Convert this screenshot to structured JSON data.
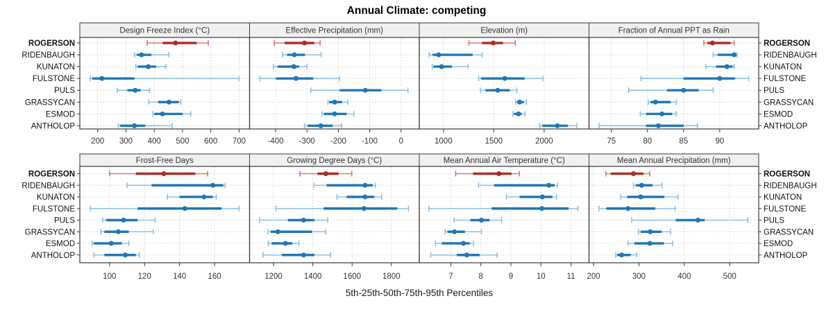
{
  "title": "Annual Climate: competing",
  "caption": "5th-25th-50th-75th-95th Percentiles",
  "colors": {
    "highlight": "#AE2C28",
    "highlight_light": "#D07A75",
    "normal": "#2076B4",
    "normal_light": "#8FC0E1",
    "strip_bg": "#F0F0F0",
    "border": "#3A3A3A",
    "grid": "#BDBDBD",
    "tick_label": "#333333",
    "site_label": "#111111"
  },
  "chart_data": {
    "type": "dotplot-percentiles",
    "percentile_levels": [
      5,
      25,
      50,
      75,
      95
    ],
    "sites": [
      "ROGERSON",
      "RIDENBAUGH",
      "KUNATON",
      "FULSTONE",
      "PULS",
      "GRASSYCAN",
      "ESMOD",
      "ANTHOLOP"
    ],
    "highlight_site": "ROGERSON",
    "panels": [
      {
        "title": "Design Freeze Index (°C)",
        "row": 0,
        "col": 0,
        "xlim": [
          137,
          737
        ],
        "ticks": [
          200,
          300,
          400,
          500,
          600,
          700
        ],
        "series": [
          {
            "site": "ROGERSON",
            "p": [
              375,
              430,
              475,
              550,
              591
            ]
          },
          {
            "site": "RIDENBAUGH",
            "p": [
              330,
              338,
              355,
              390,
              452
            ]
          },
          {
            "site": "KUNATON",
            "p": [
              335,
              342,
              379,
              407,
              441
            ]
          },
          {
            "site": "FULSTONE",
            "p": [
              174,
              181,
              215,
              330,
              700
            ]
          },
          {
            "site": "PULS",
            "p": [
              269,
              305,
              333,
              352,
              383
            ]
          },
          {
            "site": "GRASSYCAN",
            "p": [
              381,
              414,
              452,
              487,
              494
            ]
          },
          {
            "site": "ESMOD",
            "p": [
              395,
              400,
              429,
              500,
              529
            ]
          },
          {
            "site": "ANTHOLOP",
            "p": [
              273,
              280,
              330,
              368,
              464
            ]
          }
        ]
      },
      {
        "title": "Effective Precipitation (mm)",
        "row": 0,
        "col": 1,
        "xlim": [
          -483,
          58
        ],
        "ticks": [
          -400,
          -300,
          -200,
          -100,
          0
        ],
        "series": [
          {
            "site": "ROGERSON",
            "p": [
              -404,
              -371,
              -308,
              -277,
              -258
            ]
          },
          {
            "site": "RIDENBAUGH",
            "p": [
              -378,
              -363,
              -340,
              -306,
              -255
            ]
          },
          {
            "site": "KUNATON",
            "p": [
              -407,
              -394,
              -342,
              -325,
              -300
            ]
          },
          {
            "site": "FULSTONE",
            "p": [
              -450,
              -399,
              -335,
              -280,
              -196
            ]
          },
          {
            "site": "PULS",
            "p": [
              -288,
              -196,
              -114,
              -63,
              22
            ]
          },
          {
            "site": "GRASSYCAN",
            "p": [
              -233,
              -229,
              -212,
              -188,
              -170
            ]
          },
          {
            "site": "ESMOD",
            "p": [
              -252,
              -246,
              -212,
              -174,
              -150
            ]
          },
          {
            "site": "ANTHOLOP",
            "p": [
              -308,
              -298,
              -256,
              -218,
              -190
            ]
          }
        ]
      },
      {
        "title": "Elevation (m)",
        "row": 0,
        "col": 2,
        "xlim": [
          760,
          2445
        ],
        "ticks": [
          1000,
          1500,
          2000
        ],
        "series": [
          {
            "site": "ROGERSON",
            "p": [
              1253,
              1384,
              1494,
              1591,
              1713
            ]
          },
          {
            "site": "RIDENBAUGH",
            "p": [
              857,
              893,
              952,
              1290,
              1384
            ]
          },
          {
            "site": "KUNATON",
            "p": [
              890,
              902,
              982,
              1085,
              1246
            ]
          },
          {
            "site": "FULSTONE",
            "p": [
              1349,
              1374,
              1609,
              1806,
              1988
            ]
          },
          {
            "site": "PULS",
            "p": [
              1368,
              1418,
              1538,
              1658,
              1729
            ]
          },
          {
            "site": "GRASSYCAN",
            "p": [
              1717,
              1729,
              1756,
              1798,
              1825
            ]
          },
          {
            "site": "ESMOD",
            "p": [
              1690,
              1701,
              1745,
              1775,
              1809
            ]
          },
          {
            "site": "ANTHOLOP",
            "p": [
              1954,
              1982,
              2131,
              2234,
              2322
            ]
          }
        ]
      },
      {
        "title": "Fraction of Annual PPT as Rain",
        "row": 0,
        "col": 3,
        "xlim": [
          71.9,
          95.4
        ],
        "ticks": [
          75,
          80,
          85,
          90
        ],
        "series": [
          {
            "site": "ROGERSON",
            "p": [
              87.8,
              88.3,
              89.0,
              91.5,
              92.0
            ]
          },
          {
            "site": "RIDENBAUGH",
            "p": [
              89.1,
              89.7,
              92.0,
              92.2,
              92.4
            ]
          },
          {
            "site": "KUNATON",
            "p": [
              88.1,
              89.5,
              91.0,
              91.8,
              92.0
            ]
          },
          {
            "site": "FULSTONE",
            "p": [
              79.1,
              85.0,
              90.0,
              92.1,
              94.0
            ]
          },
          {
            "site": "PULS",
            "p": [
              77.4,
              82.7,
              85.0,
              87.1,
              89.1
            ]
          },
          {
            "site": "GRASSYCAN",
            "p": [
              80.1,
              80.4,
              81.1,
              83.2,
              84.0
            ]
          },
          {
            "site": "ESMOD",
            "p": [
              79.0,
              79.8,
              82.0,
              83.4,
              84.0
            ]
          },
          {
            "site": "ANTHOLOP",
            "p": [
              73.3,
              79.8,
              81.5,
              85.0,
              86.9
            ]
          }
        ]
      },
      {
        "title": "Frost-Free Days",
        "row": 1,
        "col": 0,
        "xlim": [
          83,
          180
        ],
        "ticks": [
          100,
          120,
          140,
          160
        ],
        "series": [
          {
            "site": "ROGERSON",
            "p": [
              100,
              115,
              131,
              149,
              156
            ]
          },
          {
            "site": "RIDENBAUGH",
            "p": [
              110,
              124,
              159,
              165,
              166
            ]
          },
          {
            "site": "KUNATON",
            "p": [
              133,
              140,
              154,
              159,
              161
            ]
          },
          {
            "site": "FULSTONE",
            "p": [
              89,
              116,
              143,
              164,
              174
            ]
          },
          {
            "site": "PULS",
            "p": [
              96,
              98,
              108,
              116,
              126
            ]
          },
          {
            "site": "GRASSYCAN",
            "p": [
              95,
              97,
              105,
              111,
              125
            ]
          },
          {
            "site": "ESMOD",
            "p": [
              90,
              91,
              101,
              107,
              111
            ]
          },
          {
            "site": "ANTHOLOP",
            "p": [
              91,
              97,
              109,
              115,
              117
            ]
          }
        ]
      },
      {
        "title": "Growing Degree Days (°C)",
        "row": 1,
        "col": 1,
        "xlim": [
          1078,
          1942
        ],
        "ticks": [
          1200,
          1400,
          1600,
          1800
        ],
        "series": [
          {
            "site": "ROGERSON",
            "p": [
              1334,
              1424,
              1466,
              1531,
              1598
            ]
          },
          {
            "site": "RIDENBAUGH",
            "p": [
              1405,
              1470,
              1666,
              1705,
              1719
            ]
          },
          {
            "site": "KUNATON",
            "p": [
              1523,
              1572,
              1666,
              1713,
              1751
            ]
          },
          {
            "site": "FULSTONE",
            "p": [
              1212,
              1455,
              1660,
              1830,
              1887
            ]
          },
          {
            "site": "PULS",
            "p": [
              1128,
              1273,
              1353,
              1408,
              1476
            ]
          },
          {
            "site": "GRASSYCAN",
            "p": [
              1173,
              1186,
              1222,
              1396,
              1466
            ]
          },
          {
            "site": "ESMOD",
            "p": [
              1173,
              1191,
              1261,
              1296,
              1329
            ]
          },
          {
            "site": "ANTHOLOP",
            "p": [
              1147,
              1243,
              1353,
              1408,
              1490
            ]
          }
        ]
      },
      {
        "title": "Mean Annual Air Temperature (°C)",
        "row": 1,
        "col": 2,
        "xlim": [
          5.95,
          11.6
        ],
        "ticks": [
          7,
          8,
          9,
          10,
          11
        ],
        "series": [
          {
            "site": "ROGERSON",
            "p": [
              7.16,
              7.74,
              8.6,
              9.02,
              9.28
            ]
          },
          {
            "site": "RIDENBAUGH",
            "p": [
              7.92,
              8.44,
              10.26,
              10.46,
              10.55
            ]
          },
          {
            "site": "KUNATON",
            "p": [
              8.85,
              9.29,
              10.05,
              10.38,
              10.52
            ]
          },
          {
            "site": "FULSTONE",
            "p": [
              6.27,
              8.36,
              10.03,
              10.92,
              11.23
            ]
          },
          {
            "site": "PULS",
            "p": [
              7.11,
              7.65,
              8.02,
              8.29,
              8.69
            ]
          },
          {
            "site": "GRASSYCAN",
            "p": [
              6.81,
              6.89,
              7.12,
              7.47,
              8.02
            ]
          },
          {
            "site": "ESMOD",
            "p": [
              6.49,
              6.7,
              7.42,
              7.63,
              7.76
            ]
          },
          {
            "site": "ANTHOLOP",
            "p": [
              6.33,
              7.2,
              7.53,
              7.96,
              8.54
            ]
          }
        ]
      },
      {
        "title": "Mean Annual Precipitation (mm)",
        "row": 1,
        "col": 3,
        "xlim": [
          190,
          564
        ],
        "ticks": [
          200,
          300,
          400,
          500
        ],
        "series": [
          {
            "site": "ROGERSON",
            "p": [
              227,
              238,
              288,
              310,
              324
            ]
          },
          {
            "site": "RIDENBAUGH",
            "p": [
              288,
              293,
              306,
              330,
              351
            ]
          },
          {
            "site": "KUNATON",
            "p": [
              260,
              274,
              304,
              356,
              386
            ]
          },
          {
            "site": "FULSTONE",
            "p": [
              212,
              228,
              276,
              336,
              380
            ]
          },
          {
            "site": "PULS",
            "p": [
              284,
              381,
              430,
              445,
              540
            ]
          },
          {
            "site": "GRASSYCAN",
            "p": [
              299,
              304,
              325,
              350,
              370
            ]
          },
          {
            "site": "ESMOD",
            "p": [
              276,
              290,
              324,
              355,
              374
            ]
          },
          {
            "site": "ANTHOLOP",
            "p": [
              249,
              252,
              262,
              282,
              295
            ]
          }
        ]
      }
    ]
  }
}
